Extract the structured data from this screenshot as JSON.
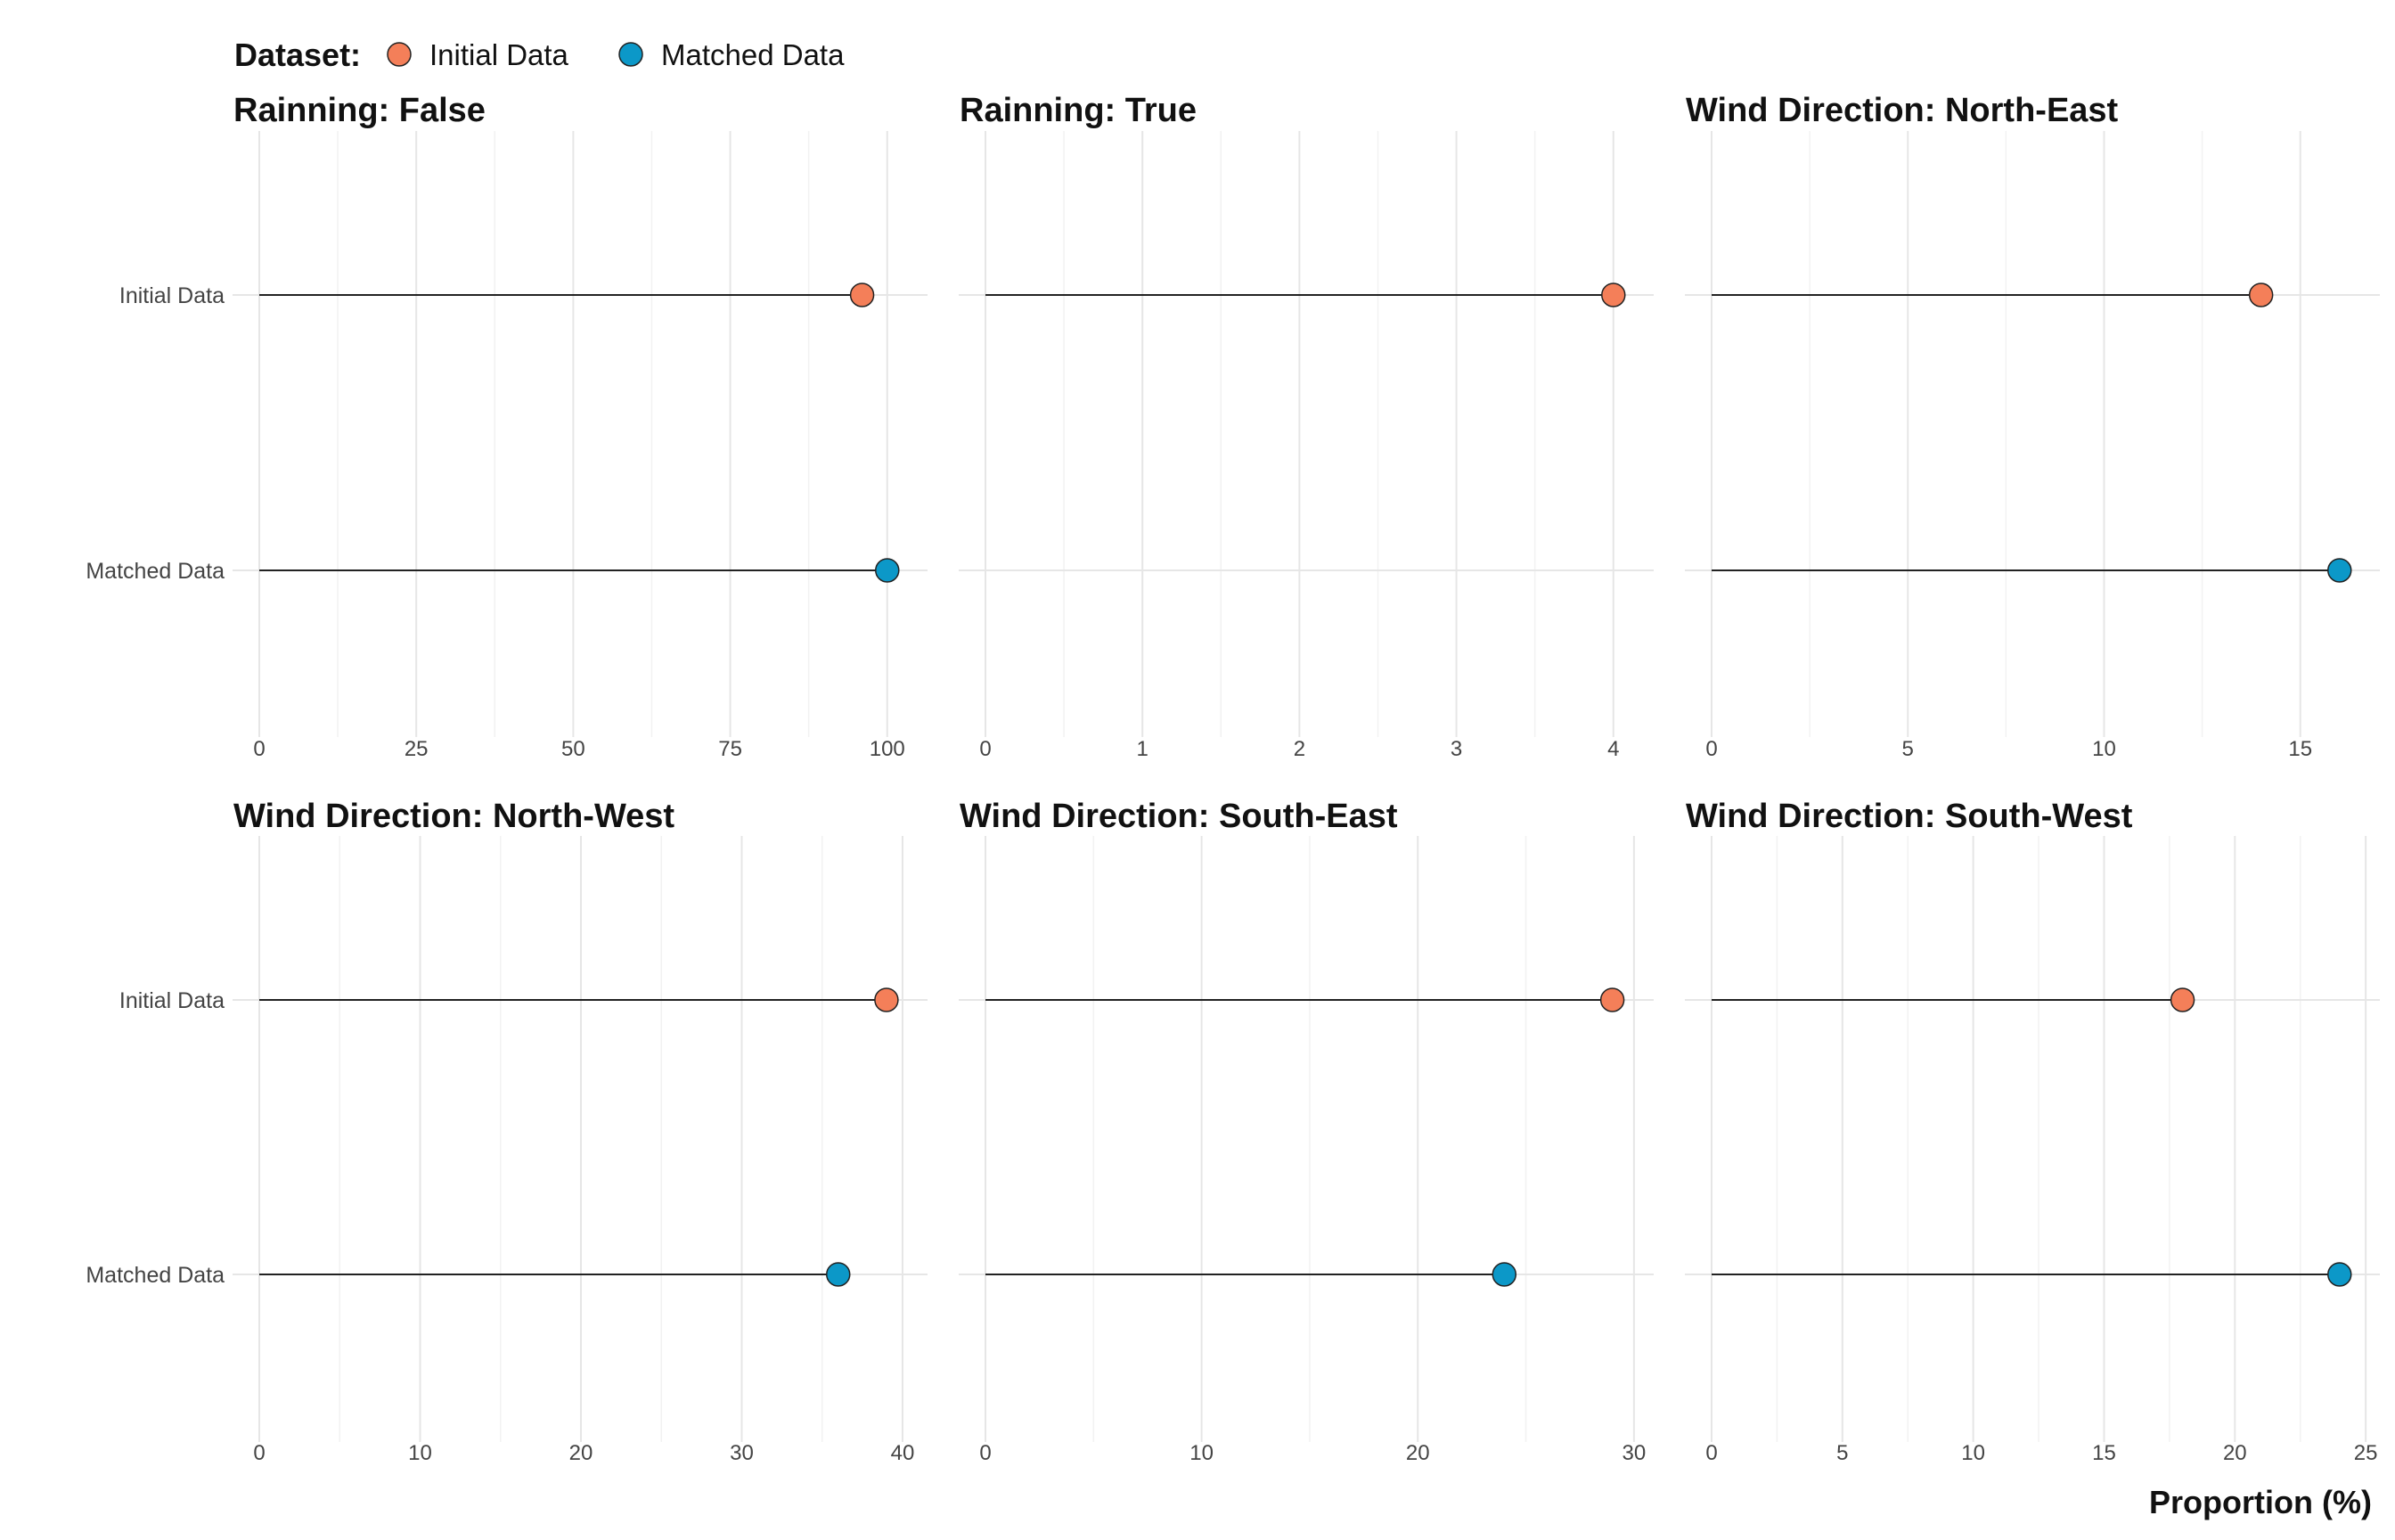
{
  "legend": {
    "title": "Dataset:",
    "items": [
      {
        "label": "Initial Data",
        "color": "#F47F59"
      },
      {
        "label": "Matched Data",
        "color": "#0C98C8"
      }
    ]
  },
  "x_axis_title": "Proportion (%)",
  "chart_data": {
    "type": "lollipop",
    "series_names": [
      "Initial Data",
      "Matched Data"
    ],
    "colors": {
      "Initial Data": "#F47F59",
      "Matched Data": "#0C98C8"
    },
    "xlabel": "Proportion (%)",
    "grid": true,
    "legend_position": "top-left",
    "facets": [
      {
        "title": "Rainning: False",
        "categories": [
          "Initial Data",
          "Matched Data"
        ],
        "values": [
          96,
          100
        ],
        "xlim": [
          0,
          105
        ],
        "ticks": [
          0,
          25,
          50,
          75,
          100
        ]
      },
      {
        "title": "Rainning: True",
        "categories": [
          "Initial Data",
          "Matched Data"
        ],
        "values": [
          4,
          null
        ],
        "xlim": [
          0,
          4.2
        ],
        "ticks": [
          0,
          1,
          2,
          3,
          4
        ]
      },
      {
        "title": "Wind Direction: North-East",
        "categories": [
          "Initial Data",
          "Matched Data"
        ],
        "values": [
          14,
          16
        ],
        "xlim": [
          0,
          16.8
        ],
        "ticks": [
          0,
          5,
          10,
          15
        ]
      },
      {
        "title": "Wind Direction: North-West",
        "categories": [
          "Initial Data",
          "Matched Data"
        ],
        "values": [
          39,
          36
        ],
        "xlim": [
          0,
          41
        ],
        "ticks": [
          0,
          10,
          20,
          30,
          40
        ]
      },
      {
        "title": "Wind Direction: South-East",
        "categories": [
          "Initial Data",
          "Matched Data"
        ],
        "values": [
          29,
          24
        ],
        "xlim": [
          0,
          30.5
        ],
        "ticks": [
          0,
          10,
          20,
          30
        ]
      },
      {
        "title": "Wind Direction: South-West",
        "categories": [
          "Initial Data",
          "Matched Data"
        ],
        "values": [
          18,
          24
        ],
        "xlim": [
          0,
          25.2
        ],
        "ticks": [
          0,
          5,
          10,
          15,
          20,
          25
        ]
      }
    ]
  }
}
